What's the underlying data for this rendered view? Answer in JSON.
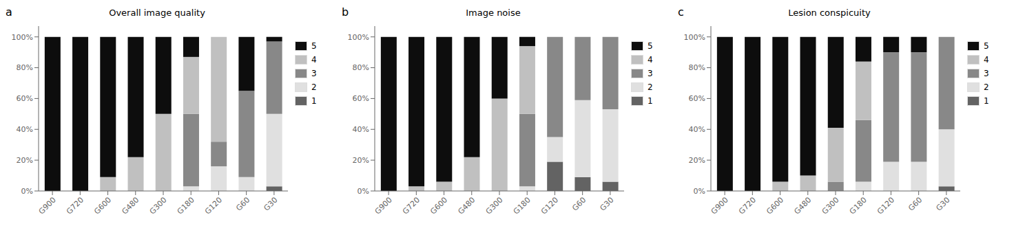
{
  "chart_data": [
    {
      "type": "bar",
      "title": "Overall image quality",
      "annotations": [
        "a"
      ],
      "stacked": true,
      "grid": false,
      "legend": "right",
      "categories": [
        "G900",
        "G720",
        "G600",
        "G480",
        "G300",
        "G180",
        "G120",
        "G60",
        "G30"
      ],
      "series": [
        {
          "name": "5",
          "color": "#0d0d0d",
          "values": [
            1.0,
            1.0,
            0.91,
            0.78,
            0.5,
            0.13,
            0.0,
            0.35,
            0.03
          ]
        },
        {
          "name": "4",
          "color": "#c0c0c0",
          "values": [
            0.0,
            0.0,
            0.09,
            0.22,
            0.5,
            0.37,
            0.68,
            0.0,
            0.0
          ]
        },
        {
          "name": "3",
          "color": "#888888",
          "values": [
            0.0,
            0.0,
            0.0,
            0.0,
            0.0,
            0.47,
            0.16,
            0.56,
            0.47
          ]
        },
        {
          "name": "2",
          "color": "#e0e0e0",
          "values": [
            0.0,
            0.0,
            0.0,
            0.0,
            0.0,
            0.03,
            0.16,
            0.09,
            0.47
          ]
        },
        {
          "name": "1",
          "color": "#636363",
          "values": [
            0.0,
            0.0,
            0.0,
            0.0,
            0.0,
            0.0,
            0.0,
            0.0,
            0.03
          ]
        }
      ],
      "ylim": [
        0,
        1.07
      ],
      "yticks": [
        {
          "value": 0.0,
          "label": "0%"
        },
        {
          "value": 0.2,
          "label": "20%"
        },
        {
          "value": 0.4,
          "label": "40%"
        },
        {
          "value": 0.6,
          "label": "60%"
        },
        {
          "value": 0.8,
          "label": "80%"
        },
        {
          "value": 1.0,
          "label": "100%"
        }
      ]
    },
    {
      "type": "bar",
      "title": "Image noise",
      "annotations": [
        "b"
      ],
      "stacked": true,
      "grid": false,
      "legend": "right",
      "categories": [
        "G900",
        "G720",
        "G600",
        "G480",
        "G300",
        "G180",
        "G120",
        "G60",
        "G30"
      ],
      "series": [
        {
          "name": "5",
          "color": "#0d0d0d",
          "values": [
            1.0,
            0.97,
            0.94,
            0.78,
            0.4,
            0.06,
            0.0,
            0.0,
            0.0
          ]
        },
        {
          "name": "4",
          "color": "#c0c0c0",
          "values": [
            0.0,
            0.03,
            0.06,
            0.22,
            0.6,
            0.44,
            0.0,
            0.0,
            0.0
          ]
        },
        {
          "name": "3",
          "color": "#888888",
          "values": [
            0.0,
            0.0,
            0.0,
            0.0,
            0.0,
            0.47,
            0.65,
            0.41,
            0.47
          ]
        },
        {
          "name": "2",
          "color": "#e0e0e0",
          "values": [
            0.0,
            0.0,
            0.0,
            0.0,
            0.0,
            0.03,
            0.16,
            0.5,
            0.47
          ]
        },
        {
          "name": "1",
          "color": "#636363",
          "values": [
            0.0,
            0.0,
            0.0,
            0.0,
            0.0,
            0.0,
            0.19,
            0.09,
            0.06
          ]
        }
      ],
      "ylim": [
        0,
        1.07
      ],
      "yticks": [
        {
          "value": 0.0,
          "label": "0%"
        },
        {
          "value": 0.2,
          "label": "20%"
        },
        {
          "value": 0.4,
          "label": "40%"
        },
        {
          "value": 0.6,
          "label": "60%"
        },
        {
          "value": 0.8,
          "label": "80%"
        },
        {
          "value": 1.0,
          "label": "100%"
        }
      ]
    },
    {
      "type": "bar",
      "title": "Lesion conspicuity",
      "annotations": [
        "c"
      ],
      "stacked": true,
      "grid": false,
      "legend": "right",
      "categories": [
        "G900",
        "G720",
        "G600",
        "G480",
        "G300",
        "G180",
        "G120",
        "G60",
        "G30"
      ],
      "series": [
        {
          "name": "5",
          "color": "#0d0d0d",
          "values": [
            1.0,
            1.0,
            0.94,
            0.9,
            0.59,
            0.16,
            0.1,
            0.1,
            0.0
          ]
        },
        {
          "name": "4",
          "color": "#c0c0c0",
          "values": [
            0.0,
            0.0,
            0.06,
            0.1,
            0.35,
            0.38,
            0.0,
            0.0,
            0.0
          ]
        },
        {
          "name": "3",
          "color": "#888888",
          "values": [
            0.0,
            0.0,
            0.0,
            0.0,
            0.06,
            0.4,
            0.71,
            0.71,
            0.6
          ]
        },
        {
          "name": "2",
          "color": "#e0e0e0",
          "values": [
            0.0,
            0.0,
            0.0,
            0.0,
            0.0,
            0.06,
            0.19,
            0.19,
            0.37
          ]
        },
        {
          "name": "1",
          "color": "#636363",
          "values": [
            0.0,
            0.0,
            0.0,
            0.0,
            0.0,
            0.0,
            0.0,
            0.0,
            0.03
          ]
        }
      ],
      "ylim": [
        0,
        1.07
      ],
      "yticks": [
        {
          "value": 0.0,
          "label": "0%"
        },
        {
          "value": 0.2,
          "label": "20%"
        },
        {
          "value": 0.4,
          "label": "40%"
        },
        {
          "value": 0.6,
          "label": "60%"
        },
        {
          "value": 0.8,
          "label": "80%"
        },
        {
          "value": 1.0,
          "label": "100%"
        }
      ]
    }
  ]
}
